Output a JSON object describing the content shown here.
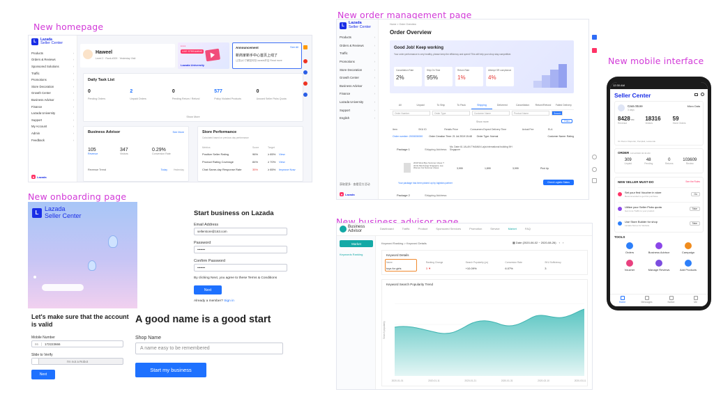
{
  "labels": {
    "home": "New homepage",
    "onboarding": "New onboarding page",
    "order": "New order management page",
    "advisor": "New business advisor page",
    "mobile": "New mobile interface"
  },
  "brand": {
    "name": "Lazada",
    "sub": "Seller Center"
  },
  "home": {
    "sidebar": [
      "Products",
      "Orders & Reviews",
      "Sponsored Solutions",
      "Traffic",
      "Promotions",
      "Store Decoration",
      "Growth Center",
      "Business Advisor",
      "Finance",
      "Lazada University",
      "Support",
      "My Account",
      "Admin",
      "Feedback"
    ],
    "user": "Haweel",
    "user_meta": "Level 2   ·   Rank #009   ·   Yesterday Visit",
    "live": "LIVE STREAMING",
    "university": "Lazada University",
    "announce_title": "Announcement",
    "announce_more": "See All",
    "announce_text": "新商家新手中心首页上线了",
    "announce_sub": "让您从0了解如何在Lazada开店  Read more",
    "task_title": "Daily Task List",
    "tasks": [
      {
        "v": "0",
        "l": "Pending Orders"
      },
      {
        "v": "2",
        "l": "Unpaid Orders"
      },
      {
        "v": "0",
        "l": "Pending Return / Refund"
      },
      {
        "v": "577",
        "l": "Policy Violated Products"
      },
      {
        "v": "0",
        "l": "Unused Seller Picks Quota"
      }
    ],
    "show_more": "Show More",
    "advisor_title": "Business Advisor",
    "advisor_more": "See More",
    "advisor_stats": [
      {
        "v": "105",
        "l": "Revenue"
      },
      {
        "v": "347",
        "l": "Visitors"
      },
      {
        "v": "0.29%",
        "l": "Conversion Rate"
      }
    ],
    "revenue_trend": "Revenue Trend",
    "legend_today": "Today",
    "legend_yesterday": "Yesterday",
    "perf_title": "Store Performance",
    "perf_sub": "Calculated based on previous day performance",
    "perf_head": [
      "Metrics",
      "Score",
      "Target"
    ],
    "perf_rows": [
      {
        "m": "Positive Seller Rating",
        "s": "96%",
        "t": "≥ 85%",
        "a": "View"
      },
      {
        "m": "Product Rating Coverage",
        "s": "84%",
        "t": "≥ 70%",
        "a": "View"
      },
      {
        "m": "Chat Same-day Response Rate",
        "s": "35%",
        "t": "≥ 85%",
        "a": "Improve Now"
      }
    ]
  },
  "onboarding": {
    "heading": "Start business on Lazada",
    "email_label": "Email Address",
    "email_value": "sellerstore@163.com",
    "password_label": "Password",
    "password_value": "•••••••",
    "confirm_label": "Confirm Password",
    "confirm_value": "•••••••",
    "terms": "By clicking Next, you agree to these Terms & Conditions",
    "next": "Next",
    "member": "Already a member?",
    "signin": "Sign in",
    "valid_title": "Let's make sure that the account is valid",
    "mobile_label": "Mobile Number",
    "mobile_prefix": "86",
    "mobile_value": "172223666",
    "slide_label": "Slide to Verify",
    "robot": "I'm not a Robot",
    "next2": "Next",
    "name_title": "A good name is a good start",
    "shop_label": "Shop Name",
    "shop_placeholder": "A name easy to be remembered",
    "start": "Start my business"
  },
  "order": {
    "breadcrumb": "Home  >  Order Overview",
    "title": "Order Overview",
    "sidebar": [
      "Products",
      "Orders & Reviews",
      "Traffic",
      "Promotions",
      "Store Decoration",
      "Growth Center",
      "Business Advisor",
      "Finance",
      "Lazada University",
      "Support",
      "English"
    ],
    "banner_title": "Good Job! Keep working",
    "banner_sub": "Your order performance is very healthy, please keep the efficiency and speed! This will help your shop stay competitive.",
    "metrics": [
      {
        "l": "Cancellation Rate",
        "v": "2%",
        "c": "#333"
      },
      {
        "l": "Ship On Time",
        "v": "95%",
        "c": "#333"
      },
      {
        "l": "Return Rate",
        "v": "1%",
        "c": "#e53935"
      },
      {
        "l": "Attempt SR compliance",
        "v": "4%",
        "c": "#e53935"
      }
    ],
    "tabs": [
      "All",
      "Unpaid",
      "To Ship",
      "To Pack",
      "Shipping",
      "Delivered",
      "Cancellation",
      "Return/Refund",
      "Failed Delivery"
    ],
    "filters": [
      "Order Number",
      "Order Type",
      "Customer Name",
      "Product Name",
      "Search"
    ],
    "filter_btn": "Filter",
    "show_more": "Show more",
    "table_head": [
      "Item",
      "SKU ID",
      "Retails Price",
      "Consumers Expect Delivery Time",
      "Actual Fee",
      "ELA"
    ],
    "order_no": "Order number: 2000000000",
    "order_meta": "Order Creation Time: 21 Jul 2019 15:48",
    "order_type": "Order Type: Normal",
    "rating": "Customer Name: Rating",
    "pkg1": "Package 1",
    "pkg2": "Package 2",
    "addr_label": "Shipping Address:",
    "addr": "Ms. Daire 61 JALAN THAMAN Lajia international building 9/H Singapore",
    "item_desc": "2019 Wool Bye Summer shoes T shirts Men/Large Singapore Lee Women hot Summer shoes",
    "item_vals": [
      "3,999",
      "1,899",
      "3,999",
      "Pick Up"
    ],
    "action": "Check Logistic Status",
    "footer": "Your package has been picked up by logistics partner"
  },
  "advisor": {
    "brand1": "Business",
    "brand2": "Advisor",
    "nav": [
      "Dashboard",
      "Traffic",
      "Product",
      "Sponsored Services",
      "Promotion",
      "Service",
      "Market",
      "FAQ"
    ],
    "side_btn": "Market",
    "side_item": "Keywords Ranking",
    "crumb": "Keyword Ranking  >  Keyword Details",
    "date": "Date  (2020-06-02 ~ 2020-08-26)",
    "details_title": "Keyword Details",
    "cols": [
      "Name",
      "Ranking Change",
      "Search Popularity (pv)",
      "Conversion Rate",
      "SKU Sufficiency"
    ],
    "row": [
      "toys for girls",
      "3 ▼",
      "+10.09%",
      "6.07%",
      "3"
    ],
    "trend_title": "Keyword Search Popularity Trend",
    "ylabel": "Search popularity",
    "xticks": [
      "2020-01-01",
      "2020-01-11",
      "2020-01-21",
      "2020-01-31",
      "2020-02-10",
      "2020-03-11"
    ]
  },
  "mobile": {
    "status_time": "12:30 AM",
    "title": "Seller Center",
    "store": "Cara Store",
    "store_sub": "3 days",
    "micro": "Micro Data",
    "stats": [
      {
        "v": "8428",
        "u": "RM",
        "l": "Revenue"
      },
      {
        "v": "18316",
        "u": "",
        "l": "Visitors"
      },
      {
        "v": "59",
        "u": "",
        "l": "Store Orders"
      }
    ],
    "stat_note": "On Rumor Reporter, Peniplait, Leistende",
    "orders_title": "ORDER",
    "orders_date": "12/12/2020 02:49 AM",
    "orders": [
      {
        "v": "309",
        "l": "Unpaid"
      },
      {
        "v": "48",
        "l": "Pending"
      },
      {
        "v": "0",
        "l": "Returns"
      },
      {
        "v": "103609",
        "l": "Review"
      }
    ],
    "must_title": "NEW SELLER MUST-DO",
    "must_link": "See the Rules",
    "must": [
      {
        "t": "Set your first Voucher in store",
        "s": "Recommended to get first purchase",
        "b": "Go"
      },
      {
        "t": "Utilize your Seller Picks quota",
        "s": "Get more Traffic to your product",
        "b": "Take"
      },
      {
        "t": "Use Store Builder for shop",
        "s": "Lazada Stores for Website",
        "b": "Take"
      }
    ],
    "tools_title": "TOOLS",
    "tools": [
      "Orders",
      "Business Advisor",
      "Campaign",
      "Voucher",
      "Manage Reviews",
      "Add Products"
    ],
    "tabbar": [
      "Home",
      "Messages",
      "Notice",
      "Me"
    ],
    "colors": [
      "#2d7ff9",
      "#8b46e8",
      "#f08c1e",
      "#e9417f",
      "#7c4ddf",
      "#2d7ff9"
    ]
  }
}
